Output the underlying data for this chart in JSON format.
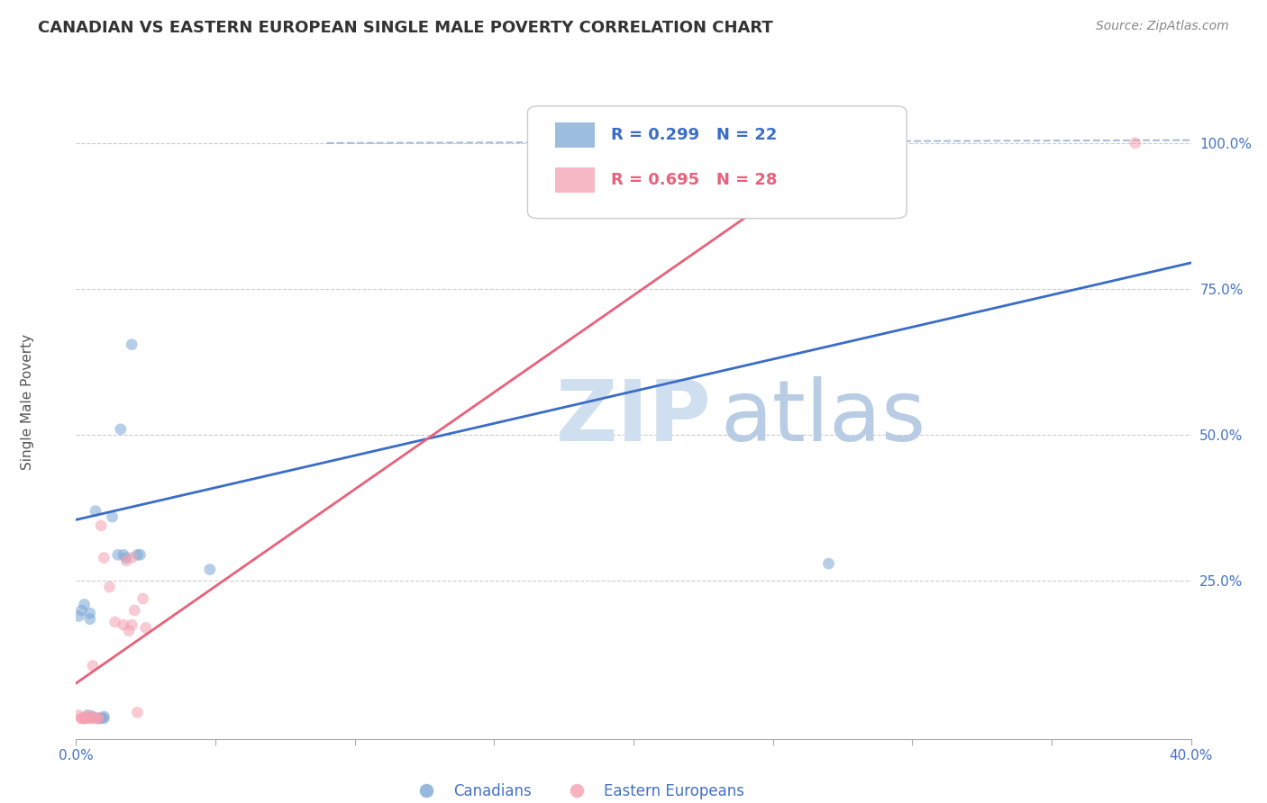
{
  "title": "CANADIAN VS EASTERN EUROPEAN SINGLE MALE POVERTY CORRELATION CHART",
  "source": "Source: ZipAtlas.com",
  "ylabel": "Single Male Poverty",
  "xlabel": "",
  "legend_labels": [
    "Canadians",
    "Eastern Europeans"
  ],
  "legend_r": [
    "R = 0.299",
    "R = 0.695"
  ],
  "legend_n": [
    "N = 22",
    "N = 28"
  ],
  "xlim": [
    0.0,
    0.4
  ],
  "ylim": [
    -0.02,
    1.08
  ],
  "yticks": [
    0.25,
    0.5,
    0.75,
    1.0
  ],
  "ytick_labels": [
    "25.0%",
    "50.0%",
    "75.0%",
    "100.0%"
  ],
  "xticks": [
    0.0,
    0.05,
    0.1,
    0.15,
    0.2,
    0.25,
    0.3,
    0.35,
    0.4
  ],
  "xtick_labels": [
    "0.0%",
    "",
    "",
    "",
    "",
    "",
    "",
    "",
    "40.0%"
  ],
  "blue_color": "#7BA7D4",
  "pink_color": "#F4A0B0",
  "blue_line_color": "#3A6CC8",
  "pink_line_color": "#E8617A",
  "dashed_line_color": "#A8BEDC",
  "axis_color": "#4472C4",
  "grid_color": "#CCCCCC",
  "title_color": "#333333",
  "watermark_zip_color": "#D0DFF0",
  "watermark_atlas_color": "#B8CCE4",
  "canadians_x": [
    0.001,
    0.002,
    0.003,
    0.004,
    0.005,
    0.005,
    0.006,
    0.007,
    0.008,
    0.009,
    0.01,
    0.01,
    0.013,
    0.015,
    0.016,
    0.017,
    0.018,
    0.02,
    0.022,
    0.023,
    0.048,
    0.27
  ],
  "canadians_y": [
    0.19,
    0.2,
    0.21,
    0.02,
    0.195,
    0.185,
    0.018,
    0.37,
    0.015,
    0.015,
    0.015,
    0.018,
    0.36,
    0.295,
    0.51,
    0.295,
    0.29,
    0.655,
    0.295,
    0.295,
    0.27,
    0.28
  ],
  "eastern_x": [
    0.001,
    0.002,
    0.002,
    0.003,
    0.003,
    0.003,
    0.004,
    0.005,
    0.005,
    0.006,
    0.006,
    0.007,
    0.008,
    0.008,
    0.009,
    0.01,
    0.012,
    0.014,
    0.017,
    0.018,
    0.019,
    0.02,
    0.021,
    0.022,
    0.024,
    0.025,
    0.02,
    0.38
  ],
  "eastern_y": [
    0.02,
    0.015,
    0.015,
    0.015,
    0.015,
    0.015,
    0.015,
    0.015,
    0.02,
    0.015,
    0.105,
    0.015,
    0.015,
    0.015,
    0.345,
    0.29,
    0.24,
    0.18,
    0.175,
    0.285,
    0.165,
    0.175,
    0.2,
    0.025,
    0.22,
    0.17,
    0.29,
    1.0
  ],
  "blue_trendline_x": [
    0.0,
    0.4
  ],
  "blue_trendline_y": [
    0.355,
    0.795
  ],
  "pink_trendline_x": [
    0.0,
    0.28
  ],
  "pink_trendline_y": [
    0.075,
    1.005
  ],
  "dashed_line_x": [
    0.1,
    0.4
  ],
  "dashed_line_y": [
    1.0,
    1.005
  ],
  "marker_size": 85,
  "marker_alpha": 0.55,
  "figsize": [
    14.06,
    8.92
  ],
  "dpi": 100
}
